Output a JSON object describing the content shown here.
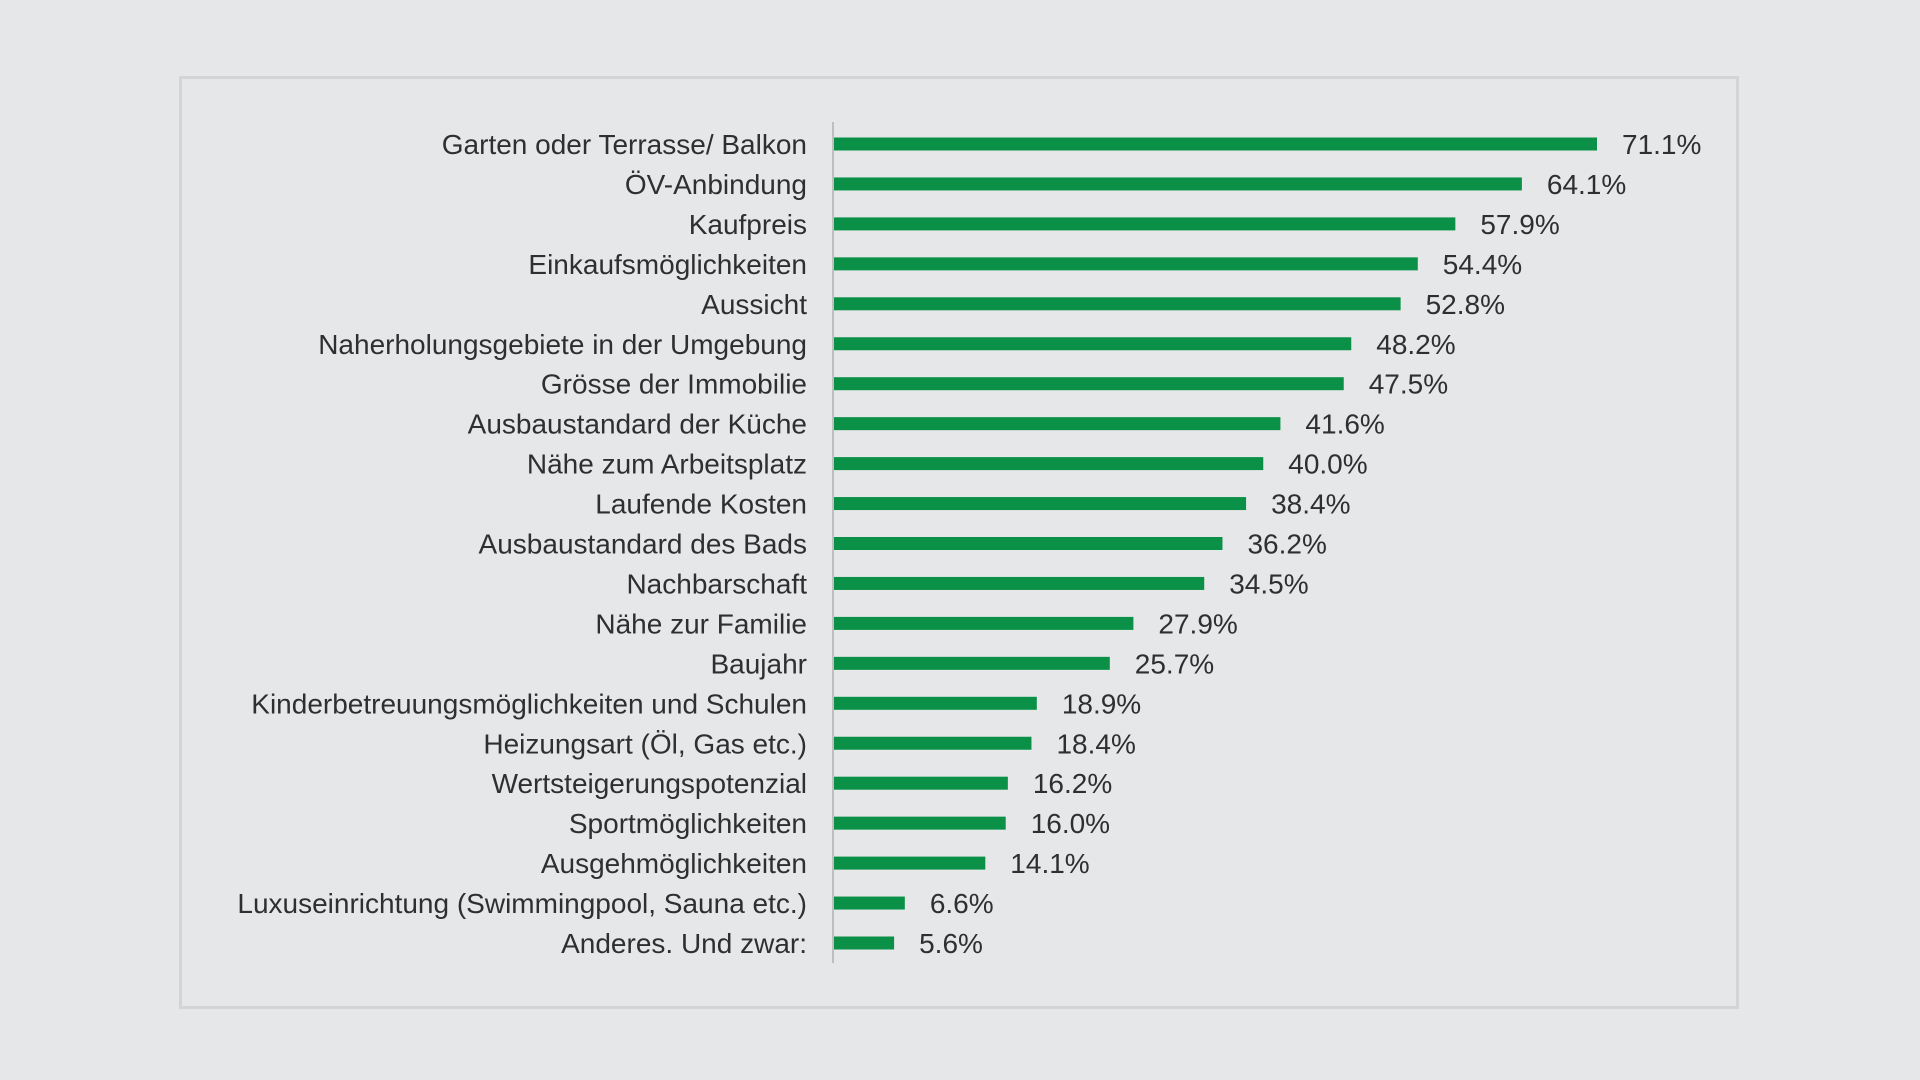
{
  "chart_data": {
    "type": "bar",
    "orientation": "horizontal",
    "categories": [
      "Garten oder Terrasse/ Balkon",
      "ÖV-Anbindung",
      "Kaufpreis",
      "Einkaufsmöglichkeiten",
      "Aussicht",
      "Naherholungsgebiete in der Umgebung",
      "Grösse der Immobilie",
      "Ausbaustandard der Küche",
      "Nähe zum Arbeitsplatz",
      "Laufende Kosten",
      "Ausbaustandard des Bads",
      "Nachbarschaft",
      "Nähe zur Familie",
      "Baujahr",
      "Kinderbetreuungsmöglichkeiten und Schulen",
      "Heizungsart (Öl, Gas etc.)",
      "Wertsteigerungspotenzial",
      "Sportmöglichkeiten",
      "Ausgehmöglichkeiten",
      "Luxuseinrichtung (Swimmingpool, Sauna etc.)",
      "Anderes. Und zwar:"
    ],
    "values": [
      71.1,
      64.1,
      57.9,
      54.4,
      52.8,
      48.2,
      47.5,
      41.6,
      40.0,
      38.4,
      36.2,
      34.5,
      27.9,
      25.7,
      18.9,
      18.4,
      16.2,
      16.0,
      14.1,
      6.6,
      5.6
    ],
    "value_labels": [
      "71.1%",
      "64.1%",
      "57.9%",
      "54.4%",
      "52.8%",
      "48.2%",
      "47.5%",
      "41.6%",
      "40.0%",
      "38.4%",
      "36.2%",
      "34.5%",
      "27.9%",
      "25.7%",
      "18.9%",
      "18.4%",
      "16.2%",
      "16.0%",
      "14.1%",
      "6.6%",
      "5.6%"
    ],
    "unit": "%",
    "xlim": [
      0,
      71.1
    ],
    "bar_color": "#0a9147",
    "axis_color": "#bfbfbf",
    "grid": false,
    "legend": "none",
    "title": "",
    "xlabel": "",
    "ylabel": ""
  }
}
